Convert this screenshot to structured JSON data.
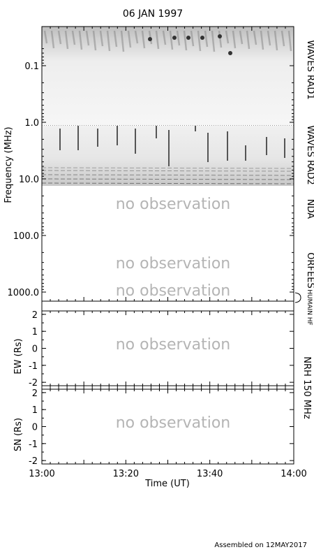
{
  "title": "06 JAN 1997",
  "footer": "Assembled on 12MAY2017",
  "no_observation": "no observation",
  "chart_data": [
    {
      "type": "heatmap",
      "panel": "dynamic-spectrum",
      "ylabel": "Frequency (MHz)",
      "y_scale": "log",
      "y_inverted": true,
      "ylim": [
        0.02,
        1500
      ],
      "yticks": [
        {
          "value": 0.1,
          "label": "0.1"
        },
        {
          "value": 1,
          "label": "1.0"
        },
        {
          "value": 10,
          "label": "10.0"
        },
        {
          "value": 100,
          "label": "100.0"
        },
        {
          "value": 1000,
          "label": "1000.0"
        }
      ],
      "xlim": [
        "13:00",
        "14:00"
      ],
      "instruments": [
        {
          "label": "WAVES RAD1",
          "freq_range": [
            0.02,
            1.0
          ],
          "observed": true
        },
        {
          "label": "WAVES RAD2",
          "freq_range": [
            1.0,
            14
          ],
          "observed": true
        },
        {
          "label": "NDA",
          "freq_range": [
            14,
            80
          ],
          "observed": false
        },
        {
          "label": "ORFEES",
          "freq_range": [
            140,
            1000
          ],
          "observed": false
        },
        {
          "label": "HUMAIN HF",
          "freq_range": [
            1000,
            1500
          ],
          "observed": false
        }
      ]
    },
    {
      "type": "scatter",
      "panel": "nrh-ew",
      "ylabel": "EW (Rs)",
      "ylim": [
        -2.2,
        2.2
      ],
      "yticks": [
        "2",
        "1",
        "0",
        "-1",
        "-2"
      ],
      "observed": false
    },
    {
      "type": "scatter",
      "panel": "nrh-sn",
      "ylabel": "SN (Rs)",
      "ylim": [
        -2.2,
        2.2
      ],
      "yticks": [
        "2",
        "1",
        "0",
        "-1",
        "-2"
      ],
      "observed": false
    }
  ],
  "nrh_label": "NRH 150 MHz",
  "xaxis": {
    "xlabel": "Time (UT)",
    "ticks": [
      {
        "minutes": 0,
        "label": "13:00"
      },
      {
        "minutes": 20,
        "label": "13:20"
      },
      {
        "minutes": 40,
        "label": "13:40"
      },
      {
        "minutes": 60,
        "label": "14:00"
      }
    ]
  }
}
